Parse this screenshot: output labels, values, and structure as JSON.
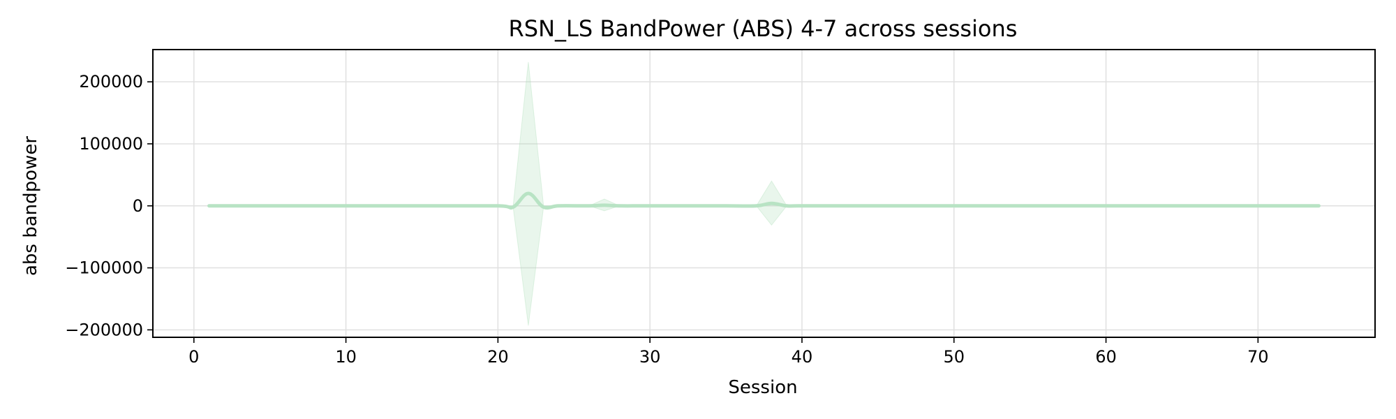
{
  "chart_data": {
    "type": "line",
    "title": "RSN_LS BandPower (ABS) 4-7 across sessions",
    "xlabel": "Session",
    "ylabel": "abs bandpower",
    "xlim": [
      -2.7,
      77.7
    ],
    "ylim": [
      -212000,
      252000
    ],
    "xticks": [
      0,
      10,
      20,
      30,
      40,
      50,
      60,
      70
    ],
    "xtick_labels": [
      "0",
      "10",
      "20",
      "30",
      "40",
      "50",
      "60",
      "70"
    ],
    "yticks": [
      200000,
      100000,
      0,
      -100000,
      -200000
    ],
    "ytick_labels": [
      "200000",
      "100000",
      "0",
      "−100000",
      "−200000"
    ],
    "grid": true,
    "series": [
      {
        "line_color": "#b8e3c4",
        "band_color": "#a8dcb5",
        "band_opacity": 0.25,
        "points": [
          {
            "x": 1,
            "y": 0,
            "lower": 0,
            "upper": 0
          },
          {
            "x": 5,
            "y": 0,
            "lower": 0,
            "upper": 0
          },
          {
            "x": 10,
            "y": 0,
            "lower": 0,
            "upper": 0
          },
          {
            "x": 15,
            "y": 0,
            "lower": 0,
            "upper": 0
          },
          {
            "x": 20,
            "y": 0,
            "lower": 0,
            "upper": 0
          },
          {
            "x": 21,
            "y": -2000,
            "lower": -2000,
            "upper": 0
          },
          {
            "x": 22,
            "y": 20000,
            "lower": -193000,
            "upper": 232000
          },
          {
            "x": 23,
            "y": -2000,
            "lower": -2000,
            "upper": 0
          },
          {
            "x": 24,
            "y": 0,
            "lower": 0,
            "upper": 0
          },
          {
            "x": 26,
            "y": 0,
            "lower": 0,
            "upper": 0
          },
          {
            "x": 27,
            "y": 1000,
            "lower": -8000,
            "upper": 11000
          },
          {
            "x": 28,
            "y": 0,
            "lower": 0,
            "upper": 0
          },
          {
            "x": 30,
            "y": 0,
            "lower": 0,
            "upper": 0
          },
          {
            "x": 35,
            "y": 0,
            "lower": 0,
            "upper": 0
          },
          {
            "x": 37,
            "y": 0,
            "lower": 0,
            "upper": 0
          },
          {
            "x": 38,
            "y": 4000,
            "lower": -31000,
            "upper": 40000
          },
          {
            "x": 39,
            "y": 0,
            "lower": 0,
            "upper": 0
          },
          {
            "x": 40,
            "y": 0,
            "lower": 0,
            "upper": 0
          },
          {
            "x": 45,
            "y": 0,
            "lower": 0,
            "upper": 0
          },
          {
            "x": 50,
            "y": 0,
            "lower": 0,
            "upper": 0
          },
          {
            "x": 55,
            "y": 0,
            "lower": 0,
            "upper": 0
          },
          {
            "x": 60,
            "y": 0,
            "lower": 0,
            "upper": 0
          },
          {
            "x": 65,
            "y": 0,
            "lower": 0,
            "upper": 0
          },
          {
            "x": 70,
            "y": 0,
            "lower": 0,
            "upper": 0
          },
          {
            "x": 74,
            "y": 0,
            "lower": 0,
            "upper": 0
          }
        ]
      }
    ]
  }
}
